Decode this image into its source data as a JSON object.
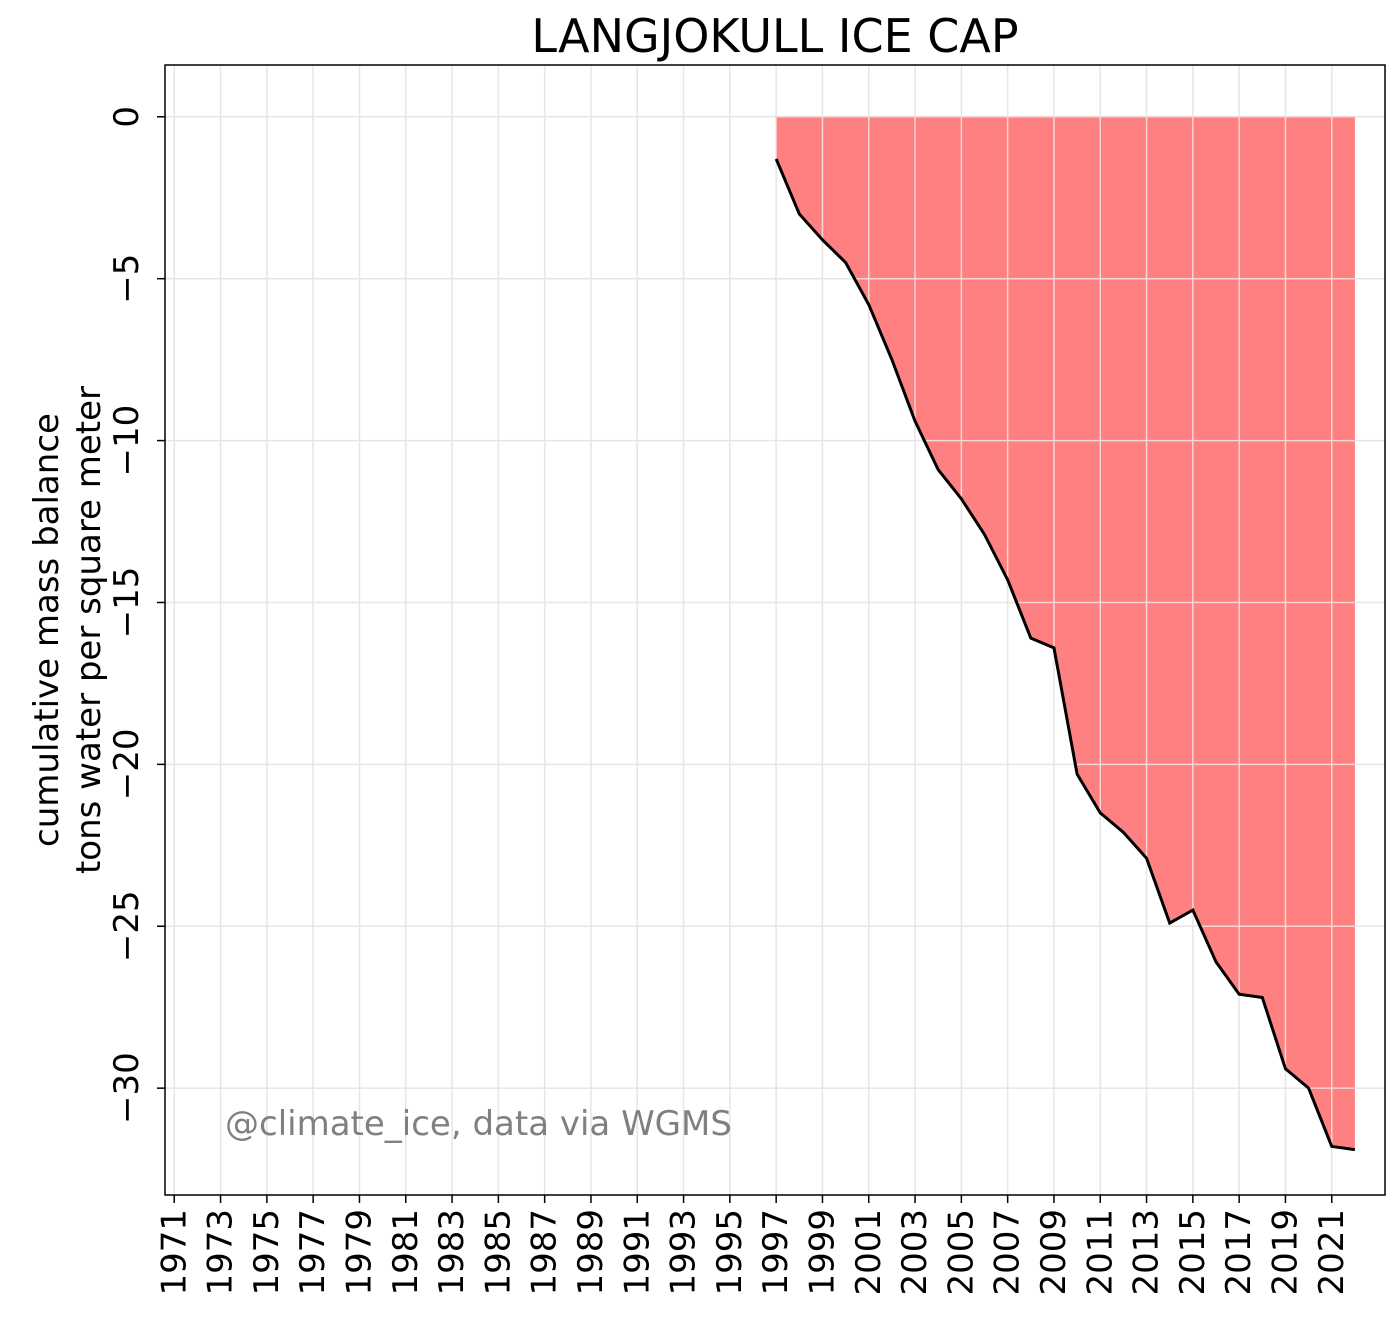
{
  "chart_data": {
    "type": "area",
    "title": "LANGJOKULL ICE CAP",
    "ylabel_lines": [
      "cumulative mass balance",
      "tons water per square meter"
    ],
    "annotation": "@climate_ice, data via WGMS",
    "xlim": [
      1970.6,
      2023.3
    ],
    "ylim": [
      -33.3,
      1.6
    ],
    "x_ticks": [
      1971,
      1973,
      1975,
      1977,
      1979,
      1981,
      1983,
      1985,
      1987,
      1989,
      1991,
      1993,
      1995,
      1997,
      1999,
      2001,
      2003,
      2005,
      2007,
      2009,
      2011,
      2013,
      2015,
      2017,
      2019,
      2021
    ],
    "y_ticks": [
      0,
      -5,
      -10,
      -15,
      -20,
      -25,
      -30
    ],
    "grid": true,
    "fill_color": "#ff8080",
    "line_color": "#000000",
    "series": [
      {
        "x": [
          1997,
          1998,
          1999,
          2000,
          2001,
          2002,
          2003,
          2004,
          2005,
          2006,
          2007,
          2008,
          2009,
          2010,
          2011,
          2012,
          2013,
          2014,
          2015,
          2016,
          2017,
          2018,
          2019,
          2020,
          2021,
          2022
        ],
        "values": [
          -1.3,
          -3.0,
          -3.8,
          -4.5,
          -5.8,
          -7.5,
          -9.4,
          -10.9,
          -11.8,
          -12.9,
          -14.3,
          -16.1,
          -16.4,
          -20.3,
          -21.5,
          -22.1,
          -22.9,
          -24.9,
          -24.5,
          -26.1,
          -27.1,
          -27.2,
          -29.4,
          -30.0,
          -31.8,
          -31.9
        ]
      }
    ]
  }
}
